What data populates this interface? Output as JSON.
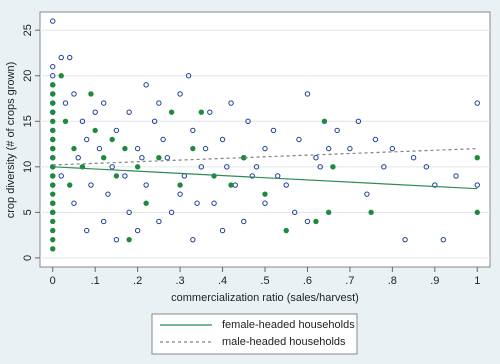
{
  "chart_data": {
    "type": "scatter",
    "x_label": "commercialization ratio (sales/harvest)",
    "y_label": "crop diversity (# of crops grown)",
    "xlim": [
      -0.03,
      1.03
    ],
    "ylim": [
      -1,
      27
    ],
    "xticks": [
      0,
      {
        "value": 0.1,
        "label": ".1"
      },
      {
        "value": 0.2,
        "label": ".2"
      },
      {
        "value": 0.3,
        "label": ".3"
      },
      {
        "value": 0.4,
        "label": ".4"
      },
      {
        "value": 0.5,
        "label": ".5"
      },
      {
        "value": 0.6,
        "label": ".6"
      },
      {
        "value": 0.7,
        "label": ".7"
      },
      {
        "value": 0.8,
        "label": ".8"
      },
      {
        "value": 0.9,
        "label": ".9"
      },
      1
    ],
    "yticks": [
      0,
      5,
      10,
      15,
      20,
      25
    ],
    "grid": true,
    "series": [
      {
        "kind": "scatter",
        "marker": "hollow",
        "color": "#1f3f91",
        "x": [
          0,
          0,
          0,
          0,
          0,
          0,
          0,
          0,
          0,
          0,
          0,
          0,
          0,
          0,
          0,
          0,
          0.02,
          0.04,
          0.03,
          0.05,
          0.07,
          0.08,
          0.1,
          0.12,
          0.15,
          0.18,
          0.2,
          0.22,
          0.24,
          0.25,
          0.27,
          0.3,
          0.32,
          0.33,
          0.35,
          0.37,
          0.4,
          0.42,
          0.45,
          0.47,
          0.5,
          0.52,
          0.55,
          0.58,
          0.6,
          0.62,
          0.63,
          0.65,
          0.67,
          0.7,
          0.72,
          0.74,
          0.76,
          0.78,
          0.8,
          0.83,
          0.85,
          0.88,
          0.9,
          0.92,
          0.95,
          1,
          1,
          0.05,
          0.08,
          0.12,
          0.15,
          0.18,
          0.2,
          0.25,
          0.28,
          0.3,
          0.33,
          0.38,
          0.4,
          0.43,
          0.45,
          0.5,
          0.53,
          0.57,
          0.6,
          0.02,
          0.06,
          0.09,
          0.11,
          0.14,
          0.17,
          0.21,
          0.26,
          0.31,
          0.36,
          0.41,
          0.46,
          0.13,
          0.22,
          0.34,
          0.48
        ],
        "values": [
          26,
          21,
          20,
          19,
          18,
          17,
          16,
          14,
          13,
          12,
          11,
          10,
          9,
          8,
          6,
          5,
          22,
          22,
          17,
          18,
          15,
          13,
          16,
          17,
          14,
          16,
          12,
          19,
          15,
          17,
          11,
          18,
          20,
          14,
          10,
          16,
          13,
          17,
          11,
          9,
          12,
          14,
          8,
          13,
          18,
          11,
          10,
          12,
          14,
          12,
          15,
          7,
          13,
          10,
          12,
          2,
          11,
          10,
          8,
          2,
          9,
          17,
          8,
          6,
          3,
          4,
          2,
          5,
          3,
          4,
          5,
          7,
          2,
          6,
          3,
          8,
          4,
          6,
          9,
          5,
          4,
          9,
          11,
          8,
          12,
          10,
          9,
          11,
          13,
          9,
          12,
          10,
          15,
          7,
          8,
          6,
          10
        ]
      },
      {
        "kind": "scatter",
        "marker": "filled",
        "color": "#1e8a3c",
        "x": [
          0,
          0,
          0,
          0,
          0,
          0,
          0,
          0,
          0,
          0,
          0,
          0,
          0,
          0,
          0,
          0,
          0,
          0,
          0,
          0.02,
          0.03,
          0.05,
          0.07,
          0.09,
          0.1,
          0.12,
          0.14,
          0.15,
          0.17,
          0.2,
          0.22,
          0.25,
          0.28,
          0.3,
          0.33,
          0.35,
          0.38,
          0.42,
          0.45,
          0.5,
          0.55,
          0.62,
          0.64,
          0.65,
          0.66,
          0.75,
          1,
          1,
          0.18,
          0.04
        ],
        "values": [
          19,
          18,
          17,
          16,
          15,
          14,
          13,
          12,
          11,
          10,
          9,
          8,
          7,
          6,
          5,
          4,
          3,
          2,
          1,
          20,
          15,
          12,
          10,
          18,
          14,
          11,
          13,
          9,
          12,
          10,
          6,
          11,
          16,
          8,
          12,
          16,
          9,
          8,
          11,
          7,
          3,
          4,
          15,
          5,
          10,
          5,
          5,
          11,
          2,
          8
        ]
      },
      {
        "kind": "line",
        "name": "female-headed households",
        "color": "#2e8b57",
        "x": [
          0,
          1
        ],
        "values": [
          10,
          7.6
        ]
      },
      {
        "kind": "line",
        "name": "male-headed households",
        "color": "#808080",
        "dashed": true,
        "x": [
          0,
          1
        ],
        "values": [
          10.2,
          12
        ]
      }
    ]
  }
}
